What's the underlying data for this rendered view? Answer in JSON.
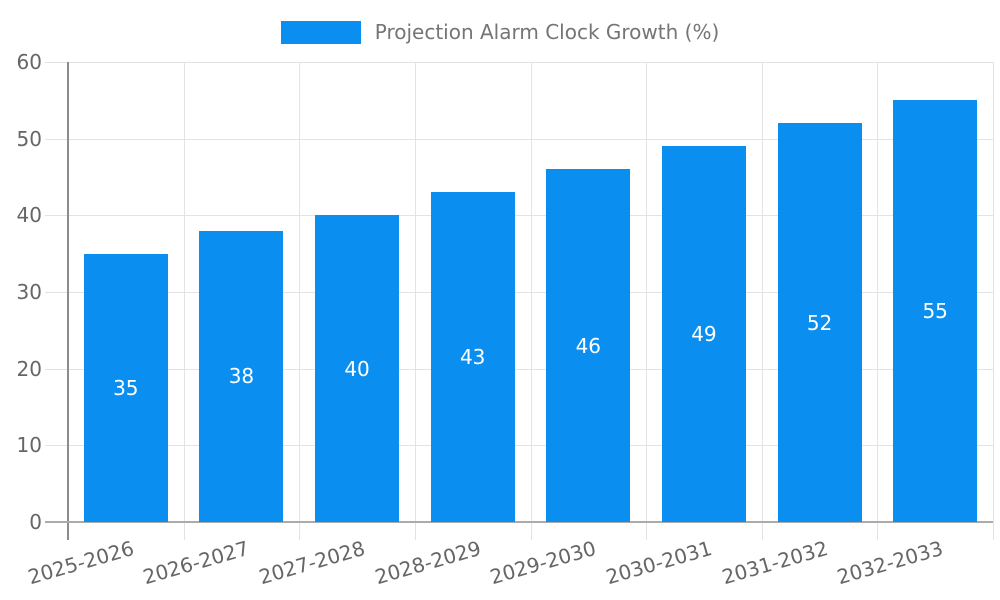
{
  "chart_data": {
    "type": "bar",
    "title": "",
    "legend_position": "top-center",
    "grid": true,
    "categories": [
      "2025-2026",
      "2026-2027",
      "2027-2028",
      "2028-2029",
      "2029-2030",
      "2030-2031",
      "2031-2032",
      "2032-2033"
    ],
    "series": [
      {
        "name": "Projection Alarm Clock Growth (%)",
        "values": [
          35,
          38,
          40,
          43,
          46,
          49,
          52,
          55
        ]
      }
    ],
    "value_labels_position": "inside-center",
    "xlabel": "",
    "ylabel": "",
    "ylim": [
      0,
      60
    ],
    "yticks": [
      0,
      10,
      20,
      30,
      40,
      50,
      60
    ],
    "colors": {
      "bar": "#0a8ff0",
      "gridline": "#e3e3e3",
      "y_axis_line": "#8c8c8c",
      "x_axis_line": "#ababab",
      "tick_text": "#666666",
      "legend_text": "#757575",
      "bar_label_text": "#ffffff",
      "background": "#ffffff"
    }
  }
}
